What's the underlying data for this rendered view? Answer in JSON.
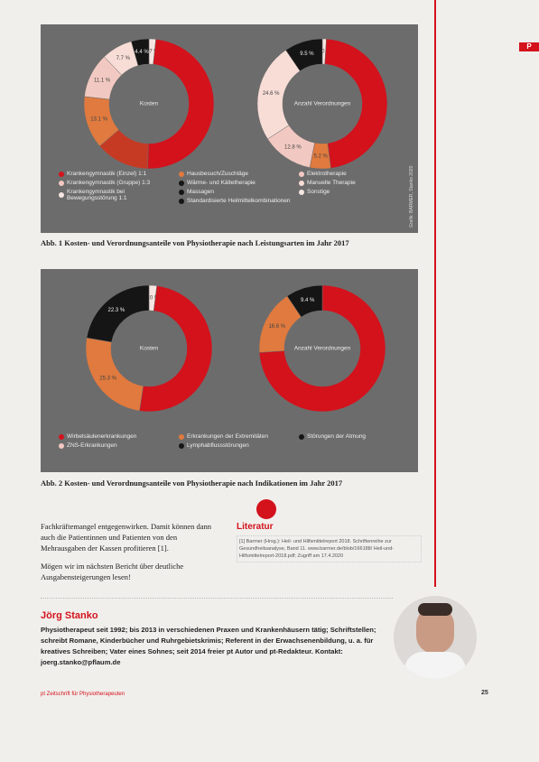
{
  "side_tab": "P",
  "figures": [
    {
      "source": "Grafik: BARMER, Stanko 2020",
      "charts": [
        {
          "type": "donut",
          "center_label": "Kosten",
          "values": [
            1.7,
            48.6,
            13.4,
            13.1,
            11.1,
            7.7,
            4.4
          ],
          "value_labels": [
            "1.7 %",
            null,
            null,
            "13.1 %",
            "11.1 %",
            "7.7 %",
            "4.4 %"
          ],
          "colors": [
            "#f6e6e2",
            "#d3121c",
            "#c63a24",
            "#e07a3e",
            "#f2c9c2",
            "#f7ddd6",
            "#151515"
          ]
        },
        {
          "type": "donut",
          "center_label": "Anzahl Verordnungen",
          "values": [
            1.0,
            46.9,
            5.2,
            12.8,
            24.6,
            9.5
          ],
          "value_labels": [
            "1.0 %",
            null,
            "5.2 %",
            "12.8 %",
            "24.6 %",
            "9.5 %"
          ],
          "colors": [
            "#f6e6e2",
            "#d3121c",
            "#e07a3e",
            "#f2c9c2",
            "#f7ddd6",
            "#151515"
          ]
        }
      ],
      "legend": [
        [
          {
            "label": "Krankengymnastik (Einzel) 1:1",
            "color": "#d3121c"
          },
          {
            "label": "Krankengymnastik (Gruppe) 1:3",
            "color": "#f2c9c2"
          },
          {
            "label": "Krankengymnastik bei Bewegungsstörung 1:1",
            "color": "#f6e6e2"
          }
        ],
        [
          {
            "label": "Hausbesuch/Zuschläge",
            "color": "#e07a3e"
          },
          {
            "label": "Wärme- und Kältetherapie",
            "color": "#151515"
          },
          {
            "label": "Massagen",
            "color": "#151515"
          },
          {
            "label": "Standardisierte Heilmittelkombinationen",
            "color": "#151515"
          }
        ],
        [
          {
            "label": "Elektrotherapie",
            "color": "#f2c9c2"
          },
          {
            "label": "Manuelle Therapie",
            "color": "#f7ddd6"
          },
          {
            "label": "Sonstige",
            "color": "#f6e6e2"
          }
        ]
      ],
      "caption": "Abb. 1 Kosten- und Verordnungsanteile von Physiotherapie nach Leistungsarten im Jahr 2017"
    },
    {
      "source": null,
      "charts": [
        {
          "type": "donut",
          "center_label": "Kosten",
          "values": [
            2.0,
            50.4,
            25.3,
            22.3
          ],
          "value_labels": [
            "2.0 %",
            null,
            "25.3 %",
            "22.3 %"
          ],
          "colors": [
            "#f6e6e2",
            "#d3121c",
            "#e07a3e",
            "#151515"
          ]
        },
        {
          "type": "donut",
          "center_label": "Anzahl Verordnungen",
          "values": [
            74.0,
            16.6,
            9.4
          ],
          "value_labels": [
            null,
            "16.6 %",
            "9.4 %"
          ],
          "colors": [
            "#d3121c",
            "#e07a3e",
            "#151515"
          ]
        }
      ],
      "legend": [
        [
          {
            "label": "Wirbelsäulenerkrankungen",
            "color": "#d3121c"
          },
          {
            "label": "ZNS-Erkrankungen",
            "color": "#f2c9c2"
          }
        ],
        [
          {
            "label": "Erkrankungen der Extremitäten",
            "color": "#e07a3e"
          },
          {
            "label": "Lymphabflussstörungen",
            "color": "#151515"
          }
        ],
        [
          {
            "label": "Störungen der Atmung",
            "color": "#151515"
          }
        ]
      ],
      "caption": "Abb. 2 Kosten- und Verordnungsanteile von Physiotherapie nach Indikationen im Jahr 2017"
    }
  ],
  "body": {
    "paragraphs": [
      "Fachkräftemangel entgegenwirken. Damit können dann auch die Patientinnen und Patienten von den Mehrausgaben der Kassen profitieren [1].",
      "Mögen wir im nächsten Bericht über deutliche Ausgabensteigerungen lesen!"
    ]
  },
  "literature": {
    "title": "Literatur",
    "text": "[1] Barmer (Hrsg.): Heil- und Hilfsmittelreport 2018. Schriftenreihe zur Gesundheitsanalyse, Band 11. www.barmer.de/blob/166188/ Heil-und-Hilfsmittelreport-2018.pdf; Zugriff am 17.4.2020"
  },
  "author": {
    "name": "Jörg Stanko",
    "bio": "Physiotherapeut seit 1992; bis 2013 in verschiedenen Praxen und Krankenhäusern tätig; Schriftstellen; schreibt Romane, Kinderbücher und Ruhrgebietskrimis; Referent in der Erwachsenenbildung, u. a. für kreatives Schreiben; Vater eines Sohnes; seit 2014 freier pt Autor und pt-Redakteur. Kontakt: joerg.stanko@pflaum.de"
  },
  "footer": {
    "journal": "pt Zeitschrift für Physiotherapeuten",
    "page": "25"
  }
}
